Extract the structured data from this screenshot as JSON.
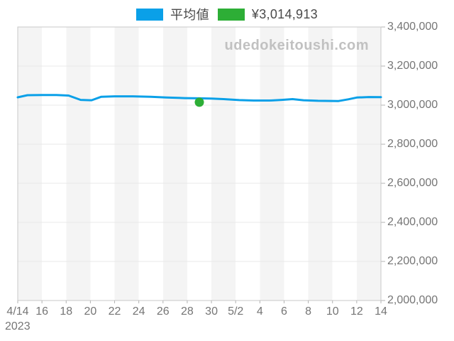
{
  "legend": {
    "items": [
      {
        "label": "平均値",
        "color": "#0aa0e8"
      },
      {
        "label": "¥3,014,913",
        "color": "#2dae36"
      }
    ]
  },
  "watermark": "udedokeitoushi.com",
  "chart_data": {
    "type": "line",
    "title": "",
    "watermark": "udedokeitoushi.com",
    "grid": "horizontal-only",
    "legend_position": "top-center",
    "background_stripes": {
      "dark": "#f4f4f4",
      "light": "#ffffff",
      "band_days": 2
    },
    "ylim": [
      2000000,
      3400000
    ],
    "x_range_days": [
      0,
      30
    ],
    "x_axis": {
      "year_label": "2023",
      "ticks": [
        {
          "day": 0,
          "label": "4/14"
        },
        {
          "day": 2,
          "label": "16"
        },
        {
          "day": 4,
          "label": "18"
        },
        {
          "day": 6,
          "label": "20"
        },
        {
          "day": 8,
          "label": "22"
        },
        {
          "day": 10,
          "label": "24"
        },
        {
          "day": 12,
          "label": "26"
        },
        {
          "day": 14,
          "label": "28"
        },
        {
          "day": 16,
          "label": "30"
        },
        {
          "day": 18,
          "label": "5/2"
        },
        {
          "day": 20,
          "label": "4"
        },
        {
          "day": 22,
          "label": "6"
        },
        {
          "day": 24,
          "label": "8"
        },
        {
          "day": 26,
          "label": "10"
        },
        {
          "day": 28,
          "label": "12"
        },
        {
          "day": 30,
          "label": "14"
        }
      ]
    },
    "y_axis": {
      "ticks": [
        {
          "value": 3400000,
          "label": "3,400,000"
        },
        {
          "value": 3200000,
          "label": "3,200,000"
        },
        {
          "value": 3000000,
          "label": "3,000,000"
        },
        {
          "value": 2800000,
          "label": "2,800,000"
        },
        {
          "value": 2600000,
          "label": "2,600,000"
        },
        {
          "value": 2400000,
          "label": "2,400,000"
        },
        {
          "value": 2200000,
          "label": "2,200,000"
        },
        {
          "value": 2000000,
          "label": "2,000,000"
        }
      ]
    },
    "series": [
      {
        "name": "平均値",
        "color": "#0aa0e8",
        "points": [
          [
            0,
            3040000
          ],
          [
            0.8,
            3051000
          ],
          [
            2,
            3052000
          ],
          [
            3.2,
            3052000
          ],
          [
            4.2,
            3049000
          ],
          [
            5.2,
            3027000
          ],
          [
            6.1,
            3025000
          ],
          [
            6.9,
            3043000
          ],
          [
            8,
            3045000
          ],
          [
            9.5,
            3045000
          ],
          [
            11,
            3043000
          ],
          [
            12.3,
            3039000
          ],
          [
            13.8,
            3036000
          ],
          [
            15,
            3035000
          ],
          [
            16,
            3034000
          ],
          [
            17,
            3031000
          ],
          [
            18.3,
            3026000
          ],
          [
            19.5,
            3023500
          ],
          [
            20.8,
            3023500
          ],
          [
            21.8,
            3027000
          ],
          [
            22.7,
            3031000
          ],
          [
            23.6,
            3025000
          ],
          [
            24.8,
            3022000
          ],
          [
            26.5,
            3021000
          ],
          [
            27.3,
            3030000
          ],
          [
            28,
            3039000
          ],
          [
            29,
            3041500
          ],
          [
            30,
            3041000
          ]
        ]
      }
    ],
    "marker": {
      "label": "¥3,014,913",
      "color": "#2dae36",
      "day": 15,
      "value": 3014913,
      "date": "4/29"
    }
  }
}
